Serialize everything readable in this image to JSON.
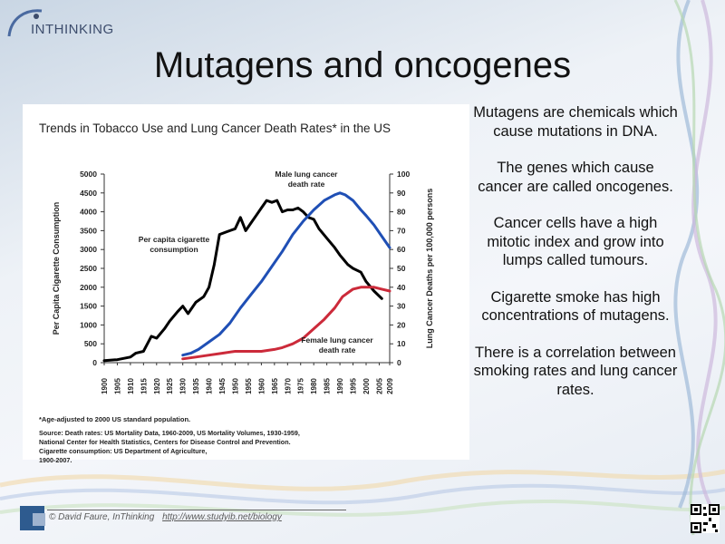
{
  "slide": {
    "logo_text": "INTHINKING",
    "title": "Mutagens and oncogenes",
    "side_text": [
      "Mutagens are chemicals which cause mutations in DNA.",
      "The genes which cause cancer are called oncogenes.",
      "Cancer cells have a high mitotic index and grow into lumps called tumours.",
      "Cigarette smoke has high concentrations of mutagens.",
      "There is a correlation between smoking rates and lung cancer rates."
    ],
    "footer_credit": "© David Faure, InThinking",
    "footer_link": "http://www.studyib.net/biology"
  },
  "chart_data": {
    "type": "line",
    "title": "Trends in Tobacco Use and Lung Cancer Death Rates* in the US",
    "ylabel_left": "Per Capita Cigarette Consumption",
    "ylabel_right": "Lung Cancer Deaths per 100,000 persons",
    "x_ticks": [
      "1900",
      "1905",
      "1910",
      "1915",
      "1920",
      "1925",
      "1930",
      "1935",
      "1940",
      "1945",
      "1950",
      "1955",
      "1960",
      "1965",
      "1970",
      "1975",
      "1980",
      "1985",
      "1990",
      "1995",
      "2000",
      "2005",
      "2009"
    ],
    "y_left_ticks": [
      "0",
      "500",
      "1000",
      "1500",
      "2000",
      "2500",
      "3000",
      "3500",
      "4000",
      "4500",
      "5000"
    ],
    "y_right_ticks": [
      "0",
      "10",
      "20",
      "30",
      "40",
      "50",
      "60",
      "70",
      "80",
      "90",
      "100"
    ],
    "ylim_left": [
      0,
      5000
    ],
    "ylim_right": [
      0,
      100
    ],
    "xlim": [
      1900,
      2009
    ],
    "series": [
      {
        "name": "Per capita cigarette consumption",
        "axis": "left",
        "color": "#000000",
        "x": [
          1900,
          1905,
          1910,
          1912,
          1915,
          1918,
          1920,
          1923,
          1925,
          1928,
          1930,
          1932,
          1935,
          1938,
          1940,
          1942,
          1944,
          1946,
          1948,
          1950,
          1952,
          1954,
          1956,
          1958,
          1960,
          1962,
          1964,
          1966,
          1968,
          1970,
          1972,
          1974,
          1976,
          1978,
          1980,
          1982,
          1985,
          1988,
          1990,
          1993,
          1995,
          1998,
          2000,
          2003,
          2006
        ],
        "y": [
          54,
          80,
          150,
          250,
          300,
          700,
          650,
          900,
          1100,
          1350,
          1500,
          1300,
          1600,
          1750,
          2000,
          2600,
          3400,
          3450,
          3500,
          3550,
          3850,
          3500,
          3700,
          3900,
          4100,
          4300,
          4250,
          4300,
          4000,
          4050,
          4050,
          4100,
          4000,
          3850,
          3800,
          3550,
          3300,
          3050,
          2850,
          2600,
          2500,
          2400,
          2150,
          1900,
          1700
        ]
      },
      {
        "name": "Male lung cancer death rate",
        "axis": "right",
        "color": "#1f4fb5",
        "x": [
          1930,
          1933,
          1936,
          1940,
          1944,
          1948,
          1952,
          1956,
          1960,
          1964,
          1968,
          1972,
          1976,
          1980,
          1984,
          1988,
          1990,
          1992,
          1995,
          1998,
          2000,
          2003,
          2006,
          2009
        ],
        "y": [
          4,
          5,
          7,
          11,
          15,
          21,
          29,
          36,
          43,
          51,
          59,
          68,
          75,
          81,
          86,
          89,
          90,
          89,
          86,
          81,
          78,
          73,
          67,
          61
        ]
      },
      {
        "name": "Female lung cancer death rate",
        "axis": "right",
        "color": "#cc2a3a",
        "x": [
          1930,
          1935,
          1940,
          1945,
          1950,
          1955,
          1960,
          1965,
          1968,
          1972,
          1976,
          1980,
          1984,
          1988,
          1991,
          1995,
          1998,
          2000,
          2003,
          2006,
          2009
        ],
        "y": [
          2,
          3,
          4,
          5,
          6,
          6,
          6,
          7,
          8,
          10,
          13,
          18,
          23,
          29,
          35,
          39,
          40,
          40,
          40,
          39,
          38
        ]
      }
    ],
    "footnote": "*Age-adjusted to 2000 US standard population.",
    "source": "Source: Death rates: US Mortality Data, 1960-2009, US Mortality Volumes, 1930-1959, National Center for Health Statistics, Centers for Disease Control and Prevention. Cigarette consumption: US Department of Agriculture, 1900-2007."
  }
}
